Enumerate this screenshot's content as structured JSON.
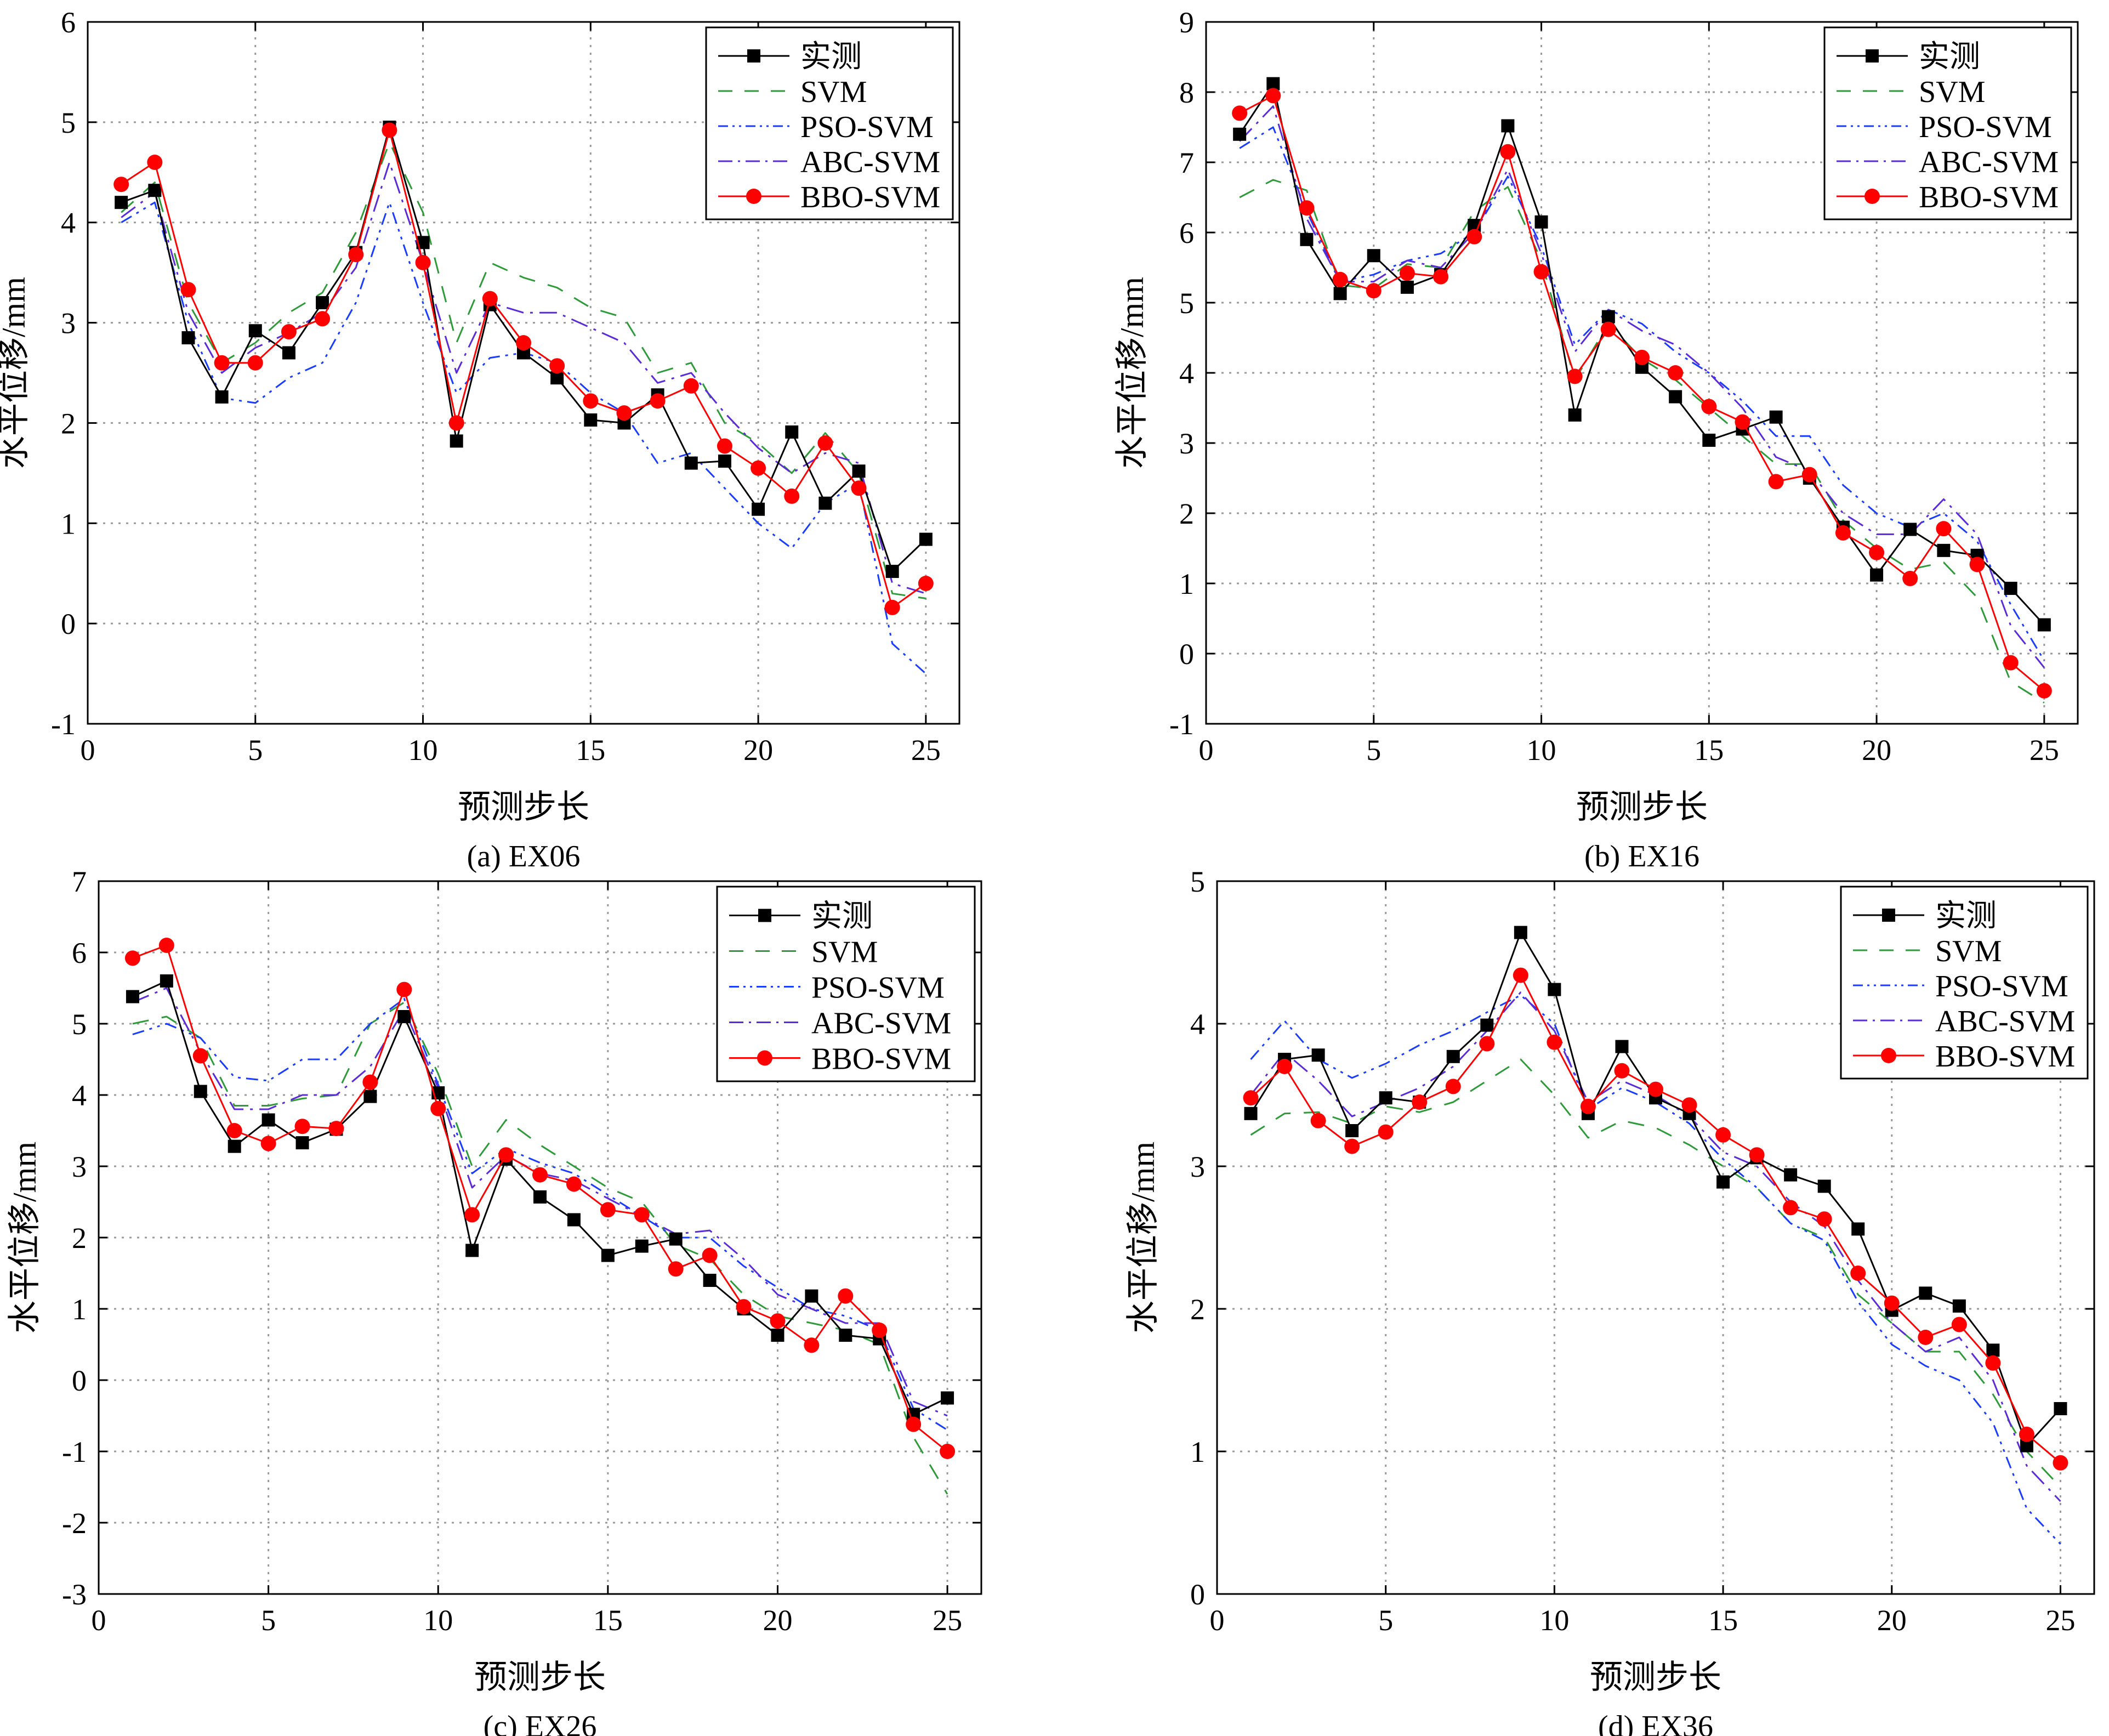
{
  "legend_labels": [
    "实测",
    "SVM",
    "PSO-SVM",
    "ABC-SVM",
    "BBO-SVM"
  ],
  "series_colors": {
    "实测": "#000000",
    "SVM": "#2e9a3a",
    "PSO-SVM": "#1a3cff",
    "ABC-SVM": "#5a2bd6",
    "BBO-SVM": "#ff0000"
  },
  "chart_data": [
    {
      "type": "line",
      "caption": "(a) EX06",
      "xlabel": "预测步长",
      "ylabel": "水平位移/mm",
      "xlim": [
        0,
        26
      ],
      "ylim": [
        -1,
        6
      ],
      "xticks": [
        0,
        5,
        10,
        15,
        20,
        25
      ],
      "yticks": [
        -1,
        0,
        1,
        2,
        3,
        4,
        5,
        6
      ],
      "grid": true,
      "legend_position": "top-right",
      "x": [
        1,
        2,
        3,
        4,
        5,
        6,
        7,
        8,
        9,
        10,
        11,
        12,
        13,
        14,
        15,
        16,
        17,
        18,
        19,
        20,
        21,
        22,
        23,
        24,
        25
      ],
      "series": [
        {
          "name": "实测",
          "values": [
            4.2,
            4.32,
            2.85,
            2.26,
            2.92,
            2.7,
            3.2,
            3.7,
            4.95,
            3.8,
            1.82,
            3.18,
            2.7,
            2.45,
            2.03,
            2.0,
            2.28,
            1.6,
            1.62,
            1.14,
            1.91,
            1.2,
            1.52,
            0.52,
            0.84
          ]
        },
        {
          "name": "SVM",
          "values": [
            4.1,
            4.4,
            3.2,
            2.6,
            2.8,
            3.1,
            3.3,
            3.9,
            4.8,
            4.1,
            2.8,
            3.6,
            3.45,
            3.35,
            3.15,
            3.05,
            2.5,
            2.6,
            2.0,
            1.8,
            1.5,
            1.9,
            1.5,
            0.3,
            0.25
          ]
        },
        {
          "name": "PSO-SVM",
          "values": [
            4.0,
            4.2,
            3.0,
            2.25,
            2.2,
            2.45,
            2.6,
            3.2,
            4.2,
            3.2,
            2.3,
            2.65,
            2.7,
            2.6,
            2.3,
            2.1,
            1.6,
            1.7,
            1.35,
            1.0,
            0.75,
            1.2,
            1.4,
            -0.2,
            -0.5
          ]
        },
        {
          "name": "ABC-SVM",
          "values": [
            4.05,
            4.3,
            3.1,
            2.5,
            2.75,
            2.9,
            3.1,
            3.55,
            4.6,
            3.6,
            2.5,
            3.2,
            3.1,
            3.1,
            2.95,
            2.8,
            2.4,
            2.5,
            2.1,
            1.75,
            1.5,
            1.7,
            1.6,
            0.4,
            0.3
          ]
        },
        {
          "name": "BBO-SVM",
          "values": [
            4.38,
            4.6,
            3.33,
            2.6,
            2.6,
            2.91,
            3.04,
            3.68,
            4.92,
            3.6,
            2.0,
            3.24,
            2.8,
            2.57,
            2.22,
            2.1,
            2.22,
            2.37,
            1.77,
            1.55,
            1.27,
            1.8,
            1.35,
            0.16,
            0.4
          ]
        }
      ]
    },
    {
      "type": "line",
      "caption": "(b) EX16",
      "xlabel": "预测步长",
      "ylabel": "水平位移/mm",
      "xlim": [
        0,
        26
      ],
      "ylim": [
        -1,
        9
      ],
      "xticks": [
        0,
        5,
        10,
        15,
        20,
        25
      ],
      "yticks": [
        -1,
        0,
        1,
        2,
        3,
        4,
        5,
        6,
        7,
        8,
        9
      ],
      "grid": true,
      "legend_position": "top-right",
      "x": [
        1,
        2,
        3,
        4,
        5,
        6,
        7,
        8,
        9,
        10,
        11,
        12,
        13,
        14,
        15,
        16,
        17,
        18,
        19,
        20,
        21,
        22,
        23,
        24,
        25
      ],
      "series": [
        {
          "name": "实测",
          "values": [
            7.4,
            8.12,
            5.9,
            5.13,
            5.67,
            5.22,
            5.4,
            6.1,
            7.52,
            6.15,
            3.4,
            4.8,
            4.08,
            3.66,
            3.04,
            3.2,
            3.37,
            2.5,
            1.8,
            1.12,
            1.77,
            1.47,
            1.4,
            0.93,
            0.41
          ]
        },
        {
          "name": "SVM",
          "values": [
            6.5,
            6.75,
            6.6,
            5.25,
            5.2,
            5.55,
            5.5,
            6.3,
            6.65,
            5.6,
            3.9,
            4.7,
            4.2,
            3.9,
            3.5,
            3.1,
            2.7,
            2.7,
            1.9,
            1.5,
            1.2,
            1.3,
            0.8,
            -0.4,
            -0.7
          ]
        },
        {
          "name": "PSO-SVM",
          "values": [
            7.2,
            7.5,
            6.3,
            5.3,
            5.4,
            5.6,
            5.7,
            6.0,
            6.8,
            5.8,
            4.4,
            4.9,
            4.7,
            4.3,
            4.0,
            3.6,
            3.1,
            3.1,
            2.4,
            2.0,
            1.8,
            2.0,
            1.6,
            0.7,
            -0.1
          ]
        },
        {
          "name": "ABC-SVM",
          "values": [
            7.3,
            7.8,
            6.2,
            5.3,
            5.3,
            5.6,
            5.5,
            6.0,
            6.9,
            5.7,
            4.3,
            4.9,
            4.6,
            4.4,
            4.0,
            3.5,
            2.8,
            2.6,
            2.0,
            1.7,
            1.7,
            2.2,
            1.7,
            0.4,
            -0.2
          ]
        },
        {
          "name": "BBO-SVM",
          "values": [
            7.7,
            7.95,
            6.35,
            5.33,
            5.17,
            5.42,
            5.37,
            5.94,
            7.15,
            5.44,
            3.95,
            4.62,
            4.22,
            4.0,
            3.52,
            3.3,
            2.45,
            2.55,
            1.72,
            1.44,
            1.07,
            1.78,
            1.27,
            -0.13,
            -0.53
          ]
        }
      ]
    },
    {
      "type": "line",
      "caption": "(c) EX26",
      "xlabel": "预测步长",
      "ylabel": "水平位移/mm",
      "xlim": [
        0,
        26
      ],
      "ylim": [
        -3,
        7
      ],
      "xticks": [
        0,
        5,
        10,
        15,
        20,
        25
      ],
      "yticks": [
        -3,
        -2,
        -1,
        0,
        1,
        2,
        3,
        4,
        5,
        6,
        7
      ],
      "grid": true,
      "legend_position": "top-right",
      "x": [
        1,
        2,
        3,
        4,
        5,
        6,
        7,
        8,
        9,
        10,
        11,
        12,
        13,
        14,
        15,
        16,
        17,
        18,
        19,
        20,
        21,
        22,
        23,
        24,
        25
      ],
      "series": [
        {
          "name": "实测",
          "values": [
            5.38,
            5.6,
            4.05,
            3.28,
            3.65,
            3.33,
            3.52,
            3.98,
            5.1,
            4.03,
            1.82,
            3.1,
            2.57,
            2.25,
            1.75,
            1.88,
            1.98,
            1.4,
            1.0,
            0.63,
            1.18,
            0.63,
            0.58,
            -0.48,
            -0.25
          ]
        },
        {
          "name": "SVM",
          "values": [
            5.0,
            5.1,
            4.8,
            3.85,
            3.85,
            3.95,
            4.0,
            5.0,
            5.3,
            4.3,
            3.0,
            3.65,
            3.3,
            3.0,
            2.7,
            2.5,
            1.9,
            1.7,
            1.2,
            0.9,
            0.8,
            0.7,
            0.5,
            -0.8,
            -1.6
          ]
        },
        {
          "name": "PSO-SVM",
          "values": [
            4.85,
            5.0,
            4.8,
            4.25,
            4.2,
            4.5,
            4.5,
            5.0,
            5.35,
            4.15,
            2.9,
            3.25,
            3.05,
            2.9,
            2.6,
            2.3,
            2.0,
            2.0,
            1.6,
            1.3,
            1.0,
            0.9,
            0.7,
            -0.4,
            -0.7
          ]
        },
        {
          "name": "ABC-SVM",
          "values": [
            5.3,
            5.5,
            4.6,
            3.8,
            3.8,
            4.0,
            4.0,
            4.4,
            5.2,
            4.1,
            2.7,
            3.15,
            2.9,
            2.8,
            2.55,
            2.3,
            2.05,
            2.1,
            1.7,
            1.2,
            1.0,
            0.8,
            0.8,
            -0.3,
            -0.5
          ]
        },
        {
          "name": "BBO-SVM",
          "values": [
            5.92,
            6.1,
            4.55,
            3.5,
            3.32,
            3.56,
            3.53,
            4.18,
            5.48,
            3.81,
            2.32,
            3.16,
            2.88,
            2.75,
            2.39,
            2.32,
            1.56,
            1.75,
            1.03,
            0.83,
            0.49,
            1.18,
            0.7,
            -0.62,
            -1.0
          ]
        }
      ]
    },
    {
      "type": "line",
      "caption": "(d) EX36",
      "xlabel": "预测步长",
      "ylabel": "水平位移/mm",
      "xlim": [
        0,
        26
      ],
      "ylim": [
        0,
        5
      ],
      "xticks": [
        0,
        5,
        10,
        15,
        20,
        25
      ],
      "yticks": [
        0,
        1,
        2,
        3,
        4,
        5
      ],
      "grid": true,
      "legend_position": "top-right",
      "x": [
        1,
        2,
        3,
        4,
        5,
        6,
        7,
        8,
        9,
        10,
        11,
        12,
        13,
        14,
        15,
        16,
        17,
        18,
        19,
        20,
        21,
        22,
        23,
        24,
        25
      ],
      "series": [
        {
          "name": "实测",
          "values": [
            3.37,
            3.75,
            3.78,
            3.25,
            3.48,
            3.45,
            3.77,
            3.99,
            4.64,
            4.24,
            3.37,
            3.84,
            3.48,
            3.37,
            2.89,
            3.06,
            2.94,
            2.86,
            2.56,
            1.99,
            2.11,
            2.02,
            1.71,
            1.04,
            1.3
          ]
        },
        {
          "name": "SVM",
          "values": [
            3.22,
            3.37,
            3.38,
            3.3,
            3.42,
            3.38,
            3.45,
            3.6,
            3.75,
            3.5,
            3.2,
            3.32,
            3.27,
            3.15,
            3.0,
            2.85,
            2.6,
            2.5,
            2.1,
            1.9,
            1.7,
            1.7,
            1.4,
            1.0,
            0.75
          ]
        },
        {
          "name": "PSO-SVM",
          "values": [
            3.75,
            4.02,
            3.75,
            3.62,
            3.72,
            3.85,
            3.95,
            4.08,
            4.2,
            4.0,
            3.4,
            3.55,
            3.45,
            3.3,
            3.05,
            2.85,
            2.6,
            2.48,
            2.05,
            1.75,
            1.6,
            1.5,
            1.2,
            0.6,
            0.35
          ]
        },
        {
          "name": "ABC-SVM",
          "values": [
            3.5,
            3.8,
            3.6,
            3.35,
            3.45,
            3.55,
            3.7,
            3.95,
            4.22,
            3.95,
            3.45,
            3.6,
            3.5,
            3.35,
            3.1,
            3.0,
            2.75,
            2.58,
            2.2,
            1.9,
            1.7,
            1.8,
            1.5,
            0.9,
            0.65
          ]
        },
        {
          "name": "BBO-SVM",
          "values": [
            3.48,
            3.7,
            3.32,
            3.14,
            3.24,
            3.45,
            3.56,
            3.86,
            4.34,
            3.87,
            3.42,
            3.67,
            3.54,
            3.43,
            3.22,
            3.08,
            2.71,
            2.63,
            2.25,
            2.04,
            1.8,
            1.89,
            1.62,
            1.12,
            0.92
          ]
        }
      ]
    }
  ]
}
